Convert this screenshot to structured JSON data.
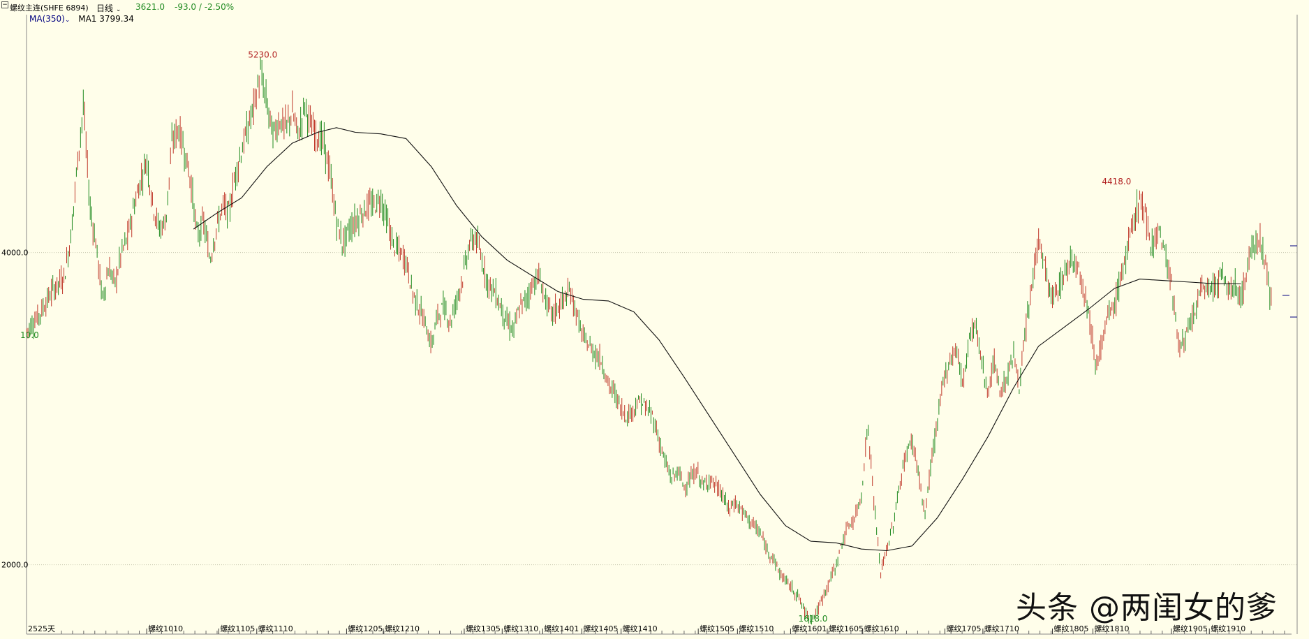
{
  "header": {
    "symbol_icon": "minus-box-icon",
    "title": "螺纹主连(SHFE 6894)",
    "period": "日线",
    "last_price": "3621.0",
    "change": "-93.0 / -2.50%"
  },
  "indicator": {
    "name": "MA(350)",
    "value_label": "MA1 3799.34"
  },
  "footer": {
    "days": "2525天"
  },
  "watermark": "头条 @两闺女的爹",
  "chart_data": {
    "type": "candlestick",
    "title": "螺纹主连(SHFE 6894)",
    "y_ticks": [
      "4000.0",
      "2000.0"
    ],
    "y_tick_values": [
      4000,
      2000
    ],
    "ylim": [
      1600,
      5470
    ],
    "x_ticks": [
      "螺纹1010",
      "螺纹1105",
      "螺纹1110",
      "螺纹1205",
      "螺纹1210",
      "螺纹1305",
      "螺纹1310",
      "螺纹1401",
      "螺纹1405",
      "螺纹1410",
      "螺纹1505",
      "螺纹1510",
      "螺纹1601",
      "螺纹1605",
      "螺纹1610",
      "螺纹1705",
      "螺纹1710",
      "螺纹1805",
      "螺纹1810",
      "螺纹1905",
      "螺纹1910"
    ],
    "x_tick_pos": [
      0.095,
      0.152,
      0.182,
      0.253,
      0.282,
      0.346,
      0.376,
      0.408,
      0.439,
      0.47,
      0.531,
      0.562,
      0.604,
      0.633,
      0.661,
      0.726,
      0.756,
      0.811,
      0.843,
      0.905,
      0.935
    ],
    "annotations": [
      {
        "label": "5230.0",
        "x": 0.185,
        "y": 5230,
        "color": "#b22222"
      },
      {
        "label": "4418.0",
        "x": 0.86,
        "y": 4418,
        "color": "#b22222"
      },
      {
        "label": "10.0",
        "x": 0.005,
        "y": 3435,
        "color": "#228b22"
      },
      {
        "label": "1618.0",
        "x": 0.62,
        "y": 1618,
        "color": "#228b22"
      }
    ],
    "price_path": [
      [
        0.0,
        3500
      ],
      [
        0.01,
        3600
      ],
      [
        0.02,
        3750
      ],
      [
        0.03,
        3850
      ],
      [
        0.035,
        4100
      ],
      [
        0.04,
        4550
      ],
      [
        0.045,
        4950
      ],
      [
        0.05,
        4300
      ],
      [
        0.055,
        4050
      ],
      [
        0.06,
        3700
      ],
      [
        0.065,
        3900
      ],
      [
        0.07,
        3800
      ],
      [
        0.075,
        4000
      ],
      [
        0.08,
        4100
      ],
      [
        0.085,
        4300
      ],
      [
        0.09,
        4450
      ],
      [
        0.095,
        4600
      ],
      [
        0.1,
        4300
      ],
      [
        0.105,
        4150
      ],
      [
        0.11,
        4200
      ],
      [
        0.115,
        4700
      ],
      [
        0.12,
        4800
      ],
      [
        0.125,
        4650
      ],
      [
        0.13,
        4450
      ],
      [
        0.135,
        4100
      ],
      [
        0.14,
        4200
      ],
      [
        0.145,
        3950
      ],
      [
        0.15,
        4150
      ],
      [
        0.155,
        4300
      ],
      [
        0.16,
        4250
      ],
      [
        0.165,
        4500
      ],
      [
        0.17,
        4650
      ],
      [
        0.175,
        4800
      ],
      [
        0.18,
        4950
      ],
      [
        0.185,
        5150
      ],
      [
        0.19,
        4950
      ],
      [
        0.195,
        4750
      ],
      [
        0.2,
        4850
      ],
      [
        0.205,
        4800
      ],
      [
        0.21,
        4900
      ],
      [
        0.215,
        4750
      ],
      [
        0.22,
        4950
      ],
      [
        0.225,
        4800
      ],
      [
        0.23,
        4750
      ],
      [
        0.235,
        4700
      ],
      [
        0.24,
        4500
      ],
      [
        0.245,
        4200
      ],
      [
        0.25,
        4050
      ],
      [
        0.255,
        4150
      ],
      [
        0.26,
        4200
      ],
      [
        0.265,
        4250
      ],
      [
        0.27,
        4300
      ],
      [
        0.275,
        4300
      ],
      [
        0.28,
        4350
      ],
      [
        0.285,
        4200
      ],
      [
        0.29,
        4050
      ],
      [
        0.295,
        4000
      ],
      [
        0.3,
        3950
      ],
      [
        0.305,
        3750
      ],
      [
        0.31,
        3650
      ],
      [
        0.315,
        3550
      ],
      [
        0.32,
        3400
      ],
      [
        0.325,
        3600
      ],
      [
        0.33,
        3650
      ],
      [
        0.335,
        3550
      ],
      [
        0.34,
        3700
      ],
      [
        0.345,
        3850
      ],
      [
        0.35,
        4050
      ],
      [
        0.355,
        4100
      ],
      [
        0.36,
        3950
      ],
      [
        0.365,
        3800
      ],
      [
        0.37,
        3750
      ],
      [
        0.375,
        3650
      ],
      [
        0.38,
        3550
      ],
      [
        0.385,
        3500
      ],
      [
        0.39,
        3650
      ],
      [
        0.395,
        3700
      ],
      [
        0.4,
        3800
      ],
      [
        0.405,
        3850
      ],
      [
        0.41,
        3700
      ],
      [
        0.415,
        3600
      ],
      [
        0.42,
        3650
      ],
      [
        0.425,
        3700
      ],
      [
        0.43,
        3750
      ],
      [
        0.435,
        3600
      ],
      [
        0.44,
        3450
      ],
      [
        0.445,
        3400
      ],
      [
        0.45,
        3350
      ],
      [
        0.455,
        3300
      ],
      [
        0.46,
        3150
      ],
      [
        0.465,
        3100
      ],
      [
        0.47,
        3000
      ],
      [
        0.475,
        2950
      ],
      [
        0.48,
        3000
      ],
      [
        0.485,
        3050
      ],
      [
        0.49,
        3000
      ],
      [
        0.495,
        2950
      ],
      [
        0.5,
        2800
      ],
      [
        0.505,
        2650
      ],
      [
        0.51,
        2550
      ],
      [
        0.515,
        2600
      ],
      [
        0.52,
        2500
      ],
      [
        0.525,
        2550
      ],
      [
        0.53,
        2600
      ],
      [
        0.535,
        2500
      ],
      [
        0.54,
        2550
      ],
      [
        0.545,
        2500
      ],
      [
        0.55,
        2450
      ],
      [
        0.555,
        2350
      ],
      [
        0.56,
        2400
      ],
      [
        0.565,
        2350
      ],
      [
        0.57,
        2300
      ],
      [
        0.575,
        2250
      ],
      [
        0.58,
        2200
      ],
      [
        0.585,
        2100
      ],
      [
        0.59,
        2050
      ],
      [
        0.595,
        1950
      ],
      [
        0.6,
        1900
      ],
      [
        0.605,
        1850
      ],
      [
        0.61,
        1800
      ],
      [
        0.615,
        1700
      ],
      [
        0.62,
        1650
      ],
      [
        0.625,
        1700
      ],
      [
        0.63,
        1800
      ],
      [
        0.635,
        1900
      ],
      [
        0.64,
        2000
      ],
      [
        0.645,
        2150
      ],
      [
        0.65,
        2250
      ],
      [
        0.655,
        2300
      ],
      [
        0.66,
        2450
      ],
      [
        0.665,
        2900
      ],
      [
        0.67,
        2400
      ],
      [
        0.675,
        1950
      ],
      [
        0.68,
        2100
      ],
      [
        0.685,
        2250
      ],
      [
        0.69,
        2500
      ],
      [
        0.695,
        2700
      ],
      [
        0.7,
        2800
      ],
      [
        0.705,
        2600
      ],
      [
        0.71,
        2300
      ],
      [
        0.715,
        2650
      ],
      [
        0.72,
        2900
      ],
      [
        0.725,
        3200
      ],
      [
        0.73,
        3300
      ],
      [
        0.735,
        3400
      ],
      [
        0.74,
        3150
      ],
      [
        0.745,
        3450
      ],
      [
        0.75,
        3550
      ],
      [
        0.755,
        3300
      ],
      [
        0.76,
        3100
      ],
      [
        0.765,
        3300
      ],
      [
        0.77,
        3100
      ],
      [
        0.775,
        3200
      ],
      [
        0.78,
        3350
      ],
      [
        0.785,
        3150
      ],
      [
        0.79,
        3500
      ],
      [
        0.795,
        3800
      ],
      [
        0.8,
        4100
      ],
      [
        0.805,
        3900
      ],
      [
        0.81,
        3700
      ],
      [
        0.815,
        3750
      ],
      [
        0.82,
        3850
      ],
      [
        0.825,
        3950
      ],
      [
        0.83,
        3950
      ],
      [
        0.835,
        3800
      ],
      [
        0.84,
        3600
      ],
      [
        0.845,
        3300
      ],
      [
        0.85,
        3400
      ],
      [
        0.855,
        3600
      ],
      [
        0.86,
        3650
      ],
      [
        0.865,
        3850
      ],
      [
        0.87,
        4000
      ],
      [
        0.875,
        4200
      ],
      [
        0.88,
        4350
      ],
      [
        0.885,
        4200
      ],
      [
        0.89,
        4050
      ],
      [
        0.895,
        4150
      ],
      [
        0.9,
        4000
      ],
      [
        0.905,
        3800
      ],
      [
        0.91,
        3450
      ],
      [
        0.915,
        3400
      ],
      [
        0.92,
        3550
      ],
      [
        0.925,
        3650
      ],
      [
        0.93,
        3800
      ],
      [
        0.935,
        3750
      ],
      [
        0.94,
        3800
      ],
      [
        0.945,
        3850
      ],
      [
        0.95,
        3750
      ],
      [
        0.955,
        3800
      ],
      [
        0.96,
        3700
      ],
      [
        0.965,
        3900
      ],
      [
        0.97,
        4050
      ],
      [
        0.975,
        4100
      ],
      [
        0.98,
        3900
      ],
      [
        0.985,
        3621
      ]
    ],
    "ma350_path": [
      [
        0.132,
        4150
      ],
      [
        0.15,
        4250
      ],
      [
        0.17,
        4350
      ],
      [
        0.19,
        4550
      ],
      [
        0.21,
        4700
      ],
      [
        0.23,
        4770
      ],
      [
        0.245,
        4800
      ],
      [
        0.26,
        4770
      ],
      [
        0.28,
        4760
      ],
      [
        0.3,
        4730
      ],
      [
        0.32,
        4550
      ],
      [
        0.34,
        4300
      ],
      [
        0.36,
        4100
      ],
      [
        0.38,
        3950
      ],
      [
        0.4,
        3850
      ],
      [
        0.42,
        3750
      ],
      [
        0.44,
        3700
      ],
      [
        0.46,
        3690
      ],
      [
        0.48,
        3620
      ],
      [
        0.5,
        3440
      ],
      [
        0.52,
        3200
      ],
      [
        0.54,
        2950
      ],
      [
        0.56,
        2700
      ],
      [
        0.58,
        2450
      ],
      [
        0.6,
        2250
      ],
      [
        0.62,
        2150
      ],
      [
        0.64,
        2140
      ],
      [
        0.66,
        2100
      ],
      [
        0.68,
        2090
      ],
      [
        0.7,
        2120
      ],
      [
        0.72,
        2300
      ],
      [
        0.74,
        2550
      ],
      [
        0.76,
        2820
      ],
      [
        0.78,
        3130
      ],
      [
        0.8,
        3400
      ],
      [
        0.82,
        3520
      ],
      [
        0.84,
        3640
      ],
      [
        0.86,
        3770
      ],
      [
        0.88,
        3830
      ],
      [
        0.9,
        3820
      ],
      [
        0.92,
        3810
      ],
      [
        0.94,
        3800
      ],
      [
        0.96,
        3799
      ]
    ]
  }
}
